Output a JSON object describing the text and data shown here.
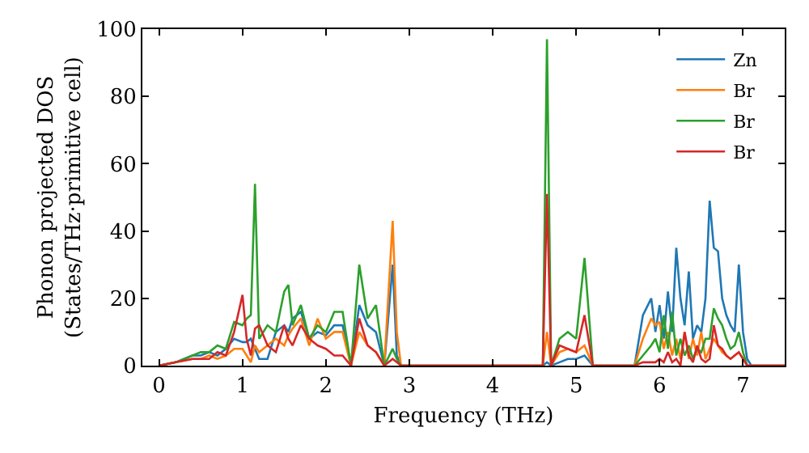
{
  "chart_data": {
    "type": "line",
    "xlabel": "Frequency (THz)",
    "ylabel": "Phonon projected DOS\n(States/THz·primitive cell)",
    "xlim": [
      -0.2,
      7.5
    ],
    "ylim": [
      0,
      100
    ],
    "xticks": [
      0,
      1,
      2,
      3,
      4,
      5,
      6,
      7
    ],
    "yticks": [
      0,
      20,
      40,
      60,
      80,
      100
    ],
    "legend": "top right",
    "x": [
      0,
      0.2,
      0.4,
      0.5,
      0.6,
      0.7,
      0.8,
      0.9,
      1.0,
      1.05,
      1.1,
      1.15,
      1.2,
      1.3,
      1.4,
      1.5,
      1.55,
      1.6,
      1.7,
      1.8,
      1.9,
      2.0,
      2.1,
      2.2,
      2.3,
      2.4,
      2.5,
      2.6,
      2.7,
      2.8,
      2.85,
      2.9,
      3.0,
      4.6,
      4.65,
      4.7,
      4.8,
      4.9,
      5.0,
      5.1,
      5.2,
      5.3,
      5.7,
      5.8,
      5.9,
      5.95,
      6.0,
      6.05,
      6.1,
      6.15,
      6.2,
      6.25,
      6.3,
      6.35,
      6.4,
      6.45,
      6.5,
      6.55,
      6.6,
      6.65,
      6.7,
      6.75,
      6.8,
      6.85,
      6.9,
      6.95,
      7.0,
      7.05,
      7.1,
      7.2,
      7.5
    ],
    "series": [
      {
        "name": "Zn",
        "color": "#1f77b4",
        "values": [
          0,
          1,
          3,
          3,
          4,
          3,
          5,
          8,
          7,
          7,
          8,
          5,
          2,
          2,
          10,
          12,
          10,
          14,
          16,
          8,
          10,
          9,
          12,
          12,
          0,
          18,
          12,
          10,
          0,
          30,
          3,
          0,
          0,
          0,
          1,
          0,
          1,
          2,
          2,
          3,
          0,
          0,
          0,
          15,
          20,
          10,
          18,
          8,
          22,
          10,
          35,
          20,
          12,
          28,
          8,
          12,
          10,
          20,
          49,
          35,
          34,
          20,
          15,
          12,
          10,
          30,
          10,
          2,
          0,
          0,
          0
        ]
      },
      {
        "name": "Br",
        "color": "#ff7f0e",
        "values": [
          0,
          1,
          2,
          2,
          3,
          2,
          3,
          5,
          5,
          3,
          1,
          6,
          4,
          6,
          8,
          6,
          9,
          11,
          14,
          6,
          14,
          8,
          10,
          10,
          0,
          10,
          6,
          4,
          0,
          43,
          10,
          0,
          0,
          0,
          10,
          0,
          4,
          5,
          4,
          6,
          0,
          0,
          0,
          8,
          14,
          12,
          13,
          5,
          10,
          3,
          8,
          2,
          10,
          2,
          8,
          3,
          10,
          2,
          5,
          8,
          6,
          4,
          3,
          2,
          3,
          4,
          2,
          0,
          0,
          0,
          0
        ]
      },
      {
        "name": "Br",
        "color": "#2ca02c",
        "values": [
          0,
          1,
          3,
          4,
          4,
          6,
          5,
          13,
          12,
          14,
          15,
          54,
          8,
          12,
          10,
          22,
          24,
          12,
          18,
          8,
          12,
          10,
          16,
          16,
          0,
          30,
          14,
          18,
          0,
          5,
          2,
          0,
          0,
          0,
          97,
          0,
          8,
          10,
          8,
          32,
          0,
          0,
          0,
          3,
          6,
          8,
          4,
          15,
          5,
          16,
          3,
          8,
          3,
          6,
          2,
          5,
          4,
          8,
          8,
          17,
          14,
          12,
          8,
          5,
          6,
          10,
          4,
          0,
          0,
          0,
          0
        ]
      },
      {
        "name": "Br",
        "color": "#d62728",
        "values": [
          0,
          1,
          2,
          2,
          2,
          4,
          3,
          10,
          21,
          8,
          3,
          11,
          12,
          6,
          4,
          12,
          8,
          6,
          12,
          8,
          6,
          5,
          3,
          3,
          0,
          14,
          6,
          4,
          0,
          2,
          1,
          0,
          0,
          0,
          51,
          0,
          6,
          5,
          4,
          15,
          0,
          0,
          0,
          1,
          1,
          1,
          2,
          1,
          4,
          1,
          2,
          0,
          10,
          3,
          1,
          6,
          2,
          1,
          2,
          12,
          6,
          5,
          3,
          2,
          3,
          4,
          2,
          0,
          0,
          0,
          0
        ]
      }
    ]
  }
}
